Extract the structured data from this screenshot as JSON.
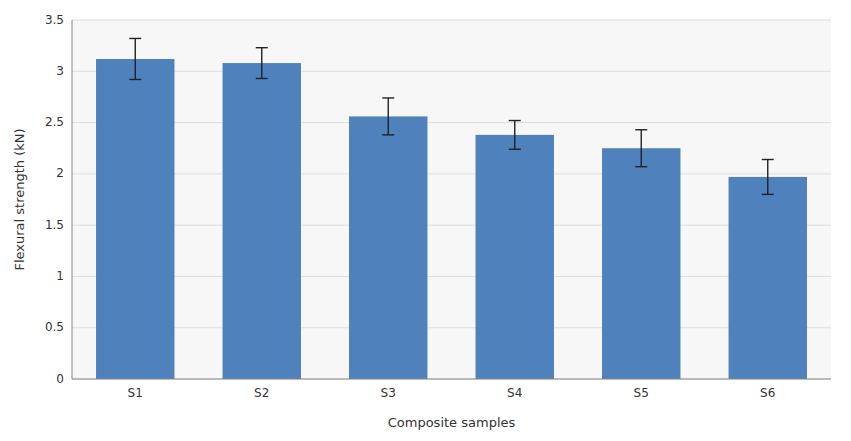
{
  "chart_data": {
    "type": "bar",
    "categories": [
      "S1",
      "S2",
      "S3",
      "S4",
      "S5",
      "S6"
    ],
    "values": [
      3.12,
      3.08,
      2.56,
      2.38,
      2.25,
      1.97
    ],
    "errors": [
      0.2,
      0.15,
      0.18,
      0.14,
      0.18,
      0.17
    ],
    "color": "#4F81BD",
    "xlabel": "Composite samples",
    "ylabel": "Flexural strength (kN)",
    "ylim": [
      0,
      3.5
    ],
    "yticks": [
      0,
      0.5,
      1,
      1.5,
      2,
      2.5,
      3,
      3.5
    ],
    "grid": true
  }
}
